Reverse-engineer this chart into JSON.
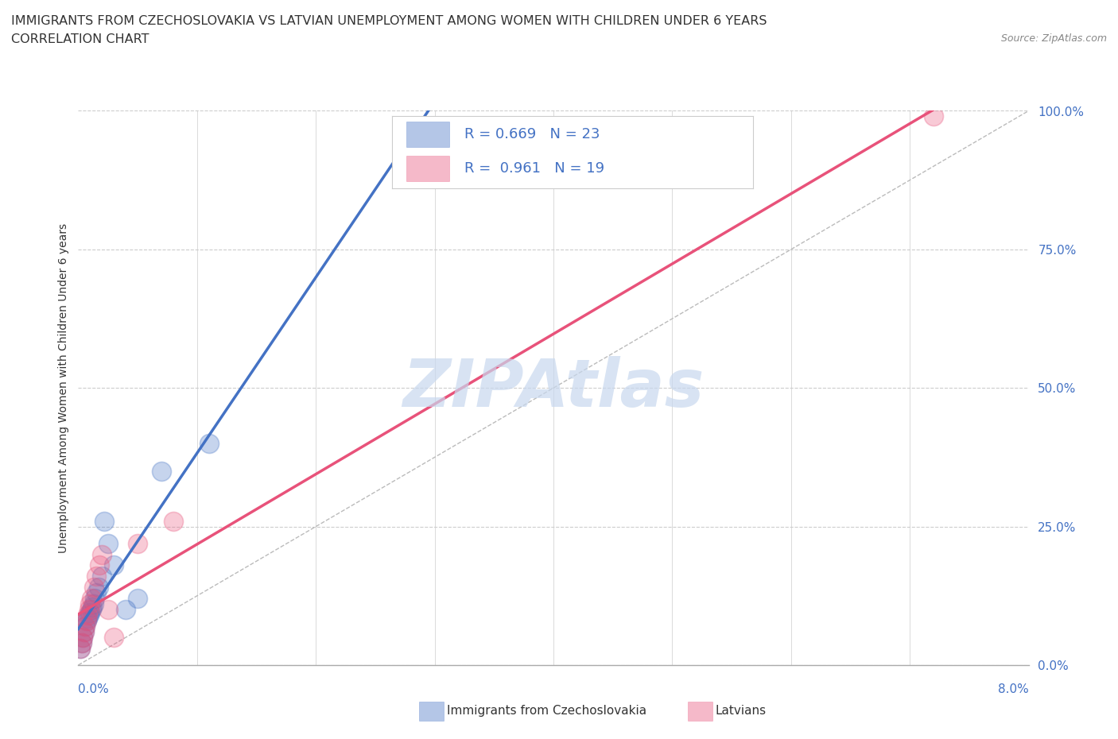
{
  "title_line1": "IMMIGRANTS FROM CZECHOSLOVAKIA VS LATVIAN UNEMPLOYMENT AMONG WOMEN WITH CHILDREN UNDER 6 YEARS",
  "title_line2": "CORRELATION CHART",
  "source_text": "Source: ZipAtlas.com",
  "ylabel": "Unemployment Among Women with Children Under 6 years",
  "blue_scatter_x": [
    0.02,
    0.03,
    0.04,
    0.05,
    0.06,
    0.07,
    0.08,
    0.09,
    0.1,
    0.11,
    0.12,
    0.13,
    0.14,
    0.15,
    0.17,
    0.2,
    0.22,
    0.25,
    0.3,
    0.4,
    0.5,
    0.7,
    1.1
  ],
  "blue_scatter_y": [
    3.0,
    4.0,
    5.0,
    6.0,
    7.0,
    8.0,
    8.5,
    9.0,
    9.5,
    10.0,
    10.5,
    11.0,
    12.0,
    13.0,
    14.0,
    16.0,
    26.0,
    22.0,
    18.0,
    10.0,
    12.0,
    35.0,
    40.0
  ],
  "pink_scatter_x": [
    0.02,
    0.03,
    0.04,
    0.05,
    0.06,
    0.07,
    0.08,
    0.09,
    0.1,
    0.11,
    0.13,
    0.15,
    0.18,
    0.2,
    0.25,
    0.3,
    0.5,
    0.8,
    7.2
  ],
  "pink_scatter_y": [
    3.0,
    4.0,
    5.0,
    6.0,
    7.0,
    8.0,
    9.0,
    10.0,
    11.0,
    12.0,
    14.0,
    16.0,
    18.0,
    20.0,
    10.0,
    5.0,
    22.0,
    26.0,
    99.0
  ],
  "blue_color": "#4472c4",
  "pink_color": "#e8527a",
  "background_color": "#ffffff",
  "grid_color": "#cccccc",
  "watermark_text": "ZIPAtlas",
  "watermark_color": "#c8d8ee",
  "xlim": [
    0.0,
    8.0
  ],
  "ylim": [
    0.0,
    100.0
  ],
  "yticks": [
    0.0,
    25.0,
    50.0,
    75.0,
    100.0
  ],
  "ytick_labels": [
    "0.0%",
    "25.0%",
    "50.0%",
    "75.0%",
    "100.0%"
  ],
  "blue_R": "0.669",
  "blue_N": "23",
  "pink_R": "0.961",
  "pink_N": "19",
  "blue_line_slope": 13.5,
  "blue_line_intercept": 3.0,
  "pink_line_slope": 13.5,
  "pink_line_intercept": -1.5
}
